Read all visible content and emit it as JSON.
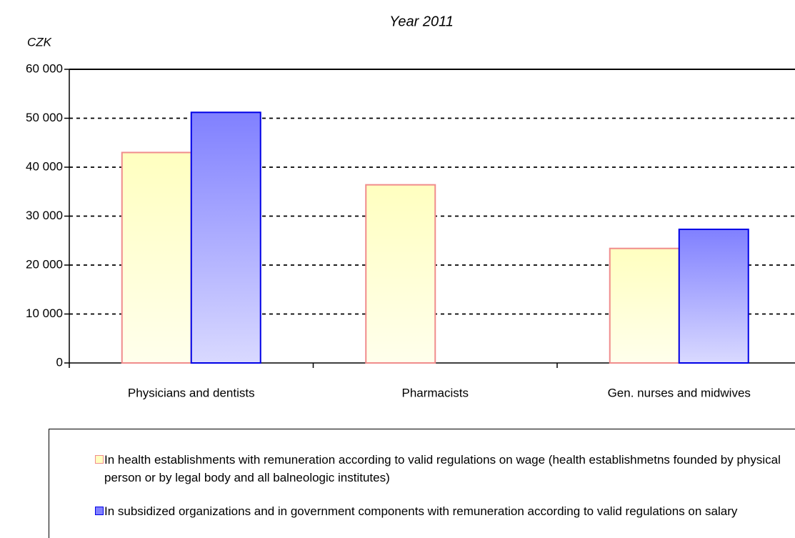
{
  "chart_data": {
    "type": "bar",
    "title": "Year 2011",
    "y_label": "CZK",
    "categories": [
      "Physicians and dentists",
      "Pharmacists",
      "Gen. nurses and midwives"
    ],
    "series": [
      {
        "name": "In health establishments with remuneration according to valid regulations on wage (health establishmetns founded by physical person or by legal body and all balneologic institutes)",
        "color": "#ffffc0",
        "edgecolor": "#f08c8c",
        "values": [
          43000,
          36400,
          23400
        ]
      },
      {
        "name": "In subsidized organizations and in government components with remuneration according to valid regulations on salary",
        "color": "#8080ff",
        "edgecolor": "#0000e6",
        "values": [
          51200,
          null,
          27300
        ]
      }
    ],
    "ylim": [
      0,
      60000
    ],
    "yticks": [
      {
        "value": 0,
        "label": "0"
      },
      {
        "value": 10000,
        "label": "10 000"
      },
      {
        "value": 20000,
        "label": "20 000"
      },
      {
        "value": 30000,
        "label": "30 000"
      },
      {
        "value": 40000,
        "label": "40 000"
      },
      {
        "value": 50000,
        "label": "50 000"
      },
      {
        "value": 60000,
        "label": "60 000"
      }
    ],
    "grid": true
  }
}
